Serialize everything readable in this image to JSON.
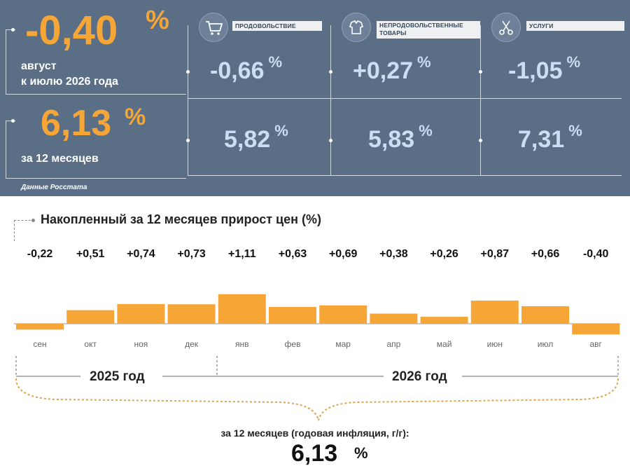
{
  "header": {
    "aug_value": "-0,40",
    "aug_pct": "%",
    "aug_label_line1": "август",
    "aug_label_line2": "к июлю 2026 года",
    "year_value": "6,13",
    "year_pct": "%",
    "year_label": "за 12 месяцев",
    "source": "Данные Росстата"
  },
  "categories": [
    {
      "label": "ПРОДОВОЛЬСТВИЕ",
      "icon": "shopping-cart-icon",
      "month": "-0,66",
      "year": "5,82",
      "pct": "%"
    },
    {
      "label": "НЕПРОДОВОЛЬСТВЕННЫЕ ТОВАРЫ",
      "icon": "clothing-icon",
      "month": "+0,27",
      "year": "5,83",
      "pct": "%"
    },
    {
      "label": "УСЛУГИ",
      "icon": "scissors-icon",
      "month": "-1,05",
      "year": "7,31",
      "pct": "%"
    }
  ],
  "chart_title": "Накопленный за 12 месяцев прирост цен (%)",
  "chart_data": {
    "type": "bar",
    "categories": [
      "сен",
      "окт",
      "ноя",
      "дек",
      "янв",
      "фев",
      "мар",
      "апр",
      "май",
      "июн",
      "июл",
      "авг"
    ],
    "values": [
      -0.22,
      0.51,
      0.74,
      0.73,
      1.11,
      0.63,
      0.69,
      0.38,
      0.26,
      0.87,
      0.66,
      -0.4
    ],
    "value_labels": [
      "-0,22",
      "+0,51",
      "+0,74",
      "+0,73",
      "+1,11",
      "+0,63",
      "+0,69",
      "+0,38",
      "+0,26",
      "+0,87",
      "+0,66",
      "-0,40"
    ],
    "color": "#f5a637",
    "year_groups": [
      "2025 год",
      "2026 год"
    ]
  },
  "footer": {
    "label": "за 12 месяцев (годовая инфляция, г/г):",
    "value": "6,13",
    "pct": "%"
  },
  "colors": {
    "panel": "#5a6e86",
    "accent": "#f5a637",
    "light_value": "#c9dff2"
  }
}
